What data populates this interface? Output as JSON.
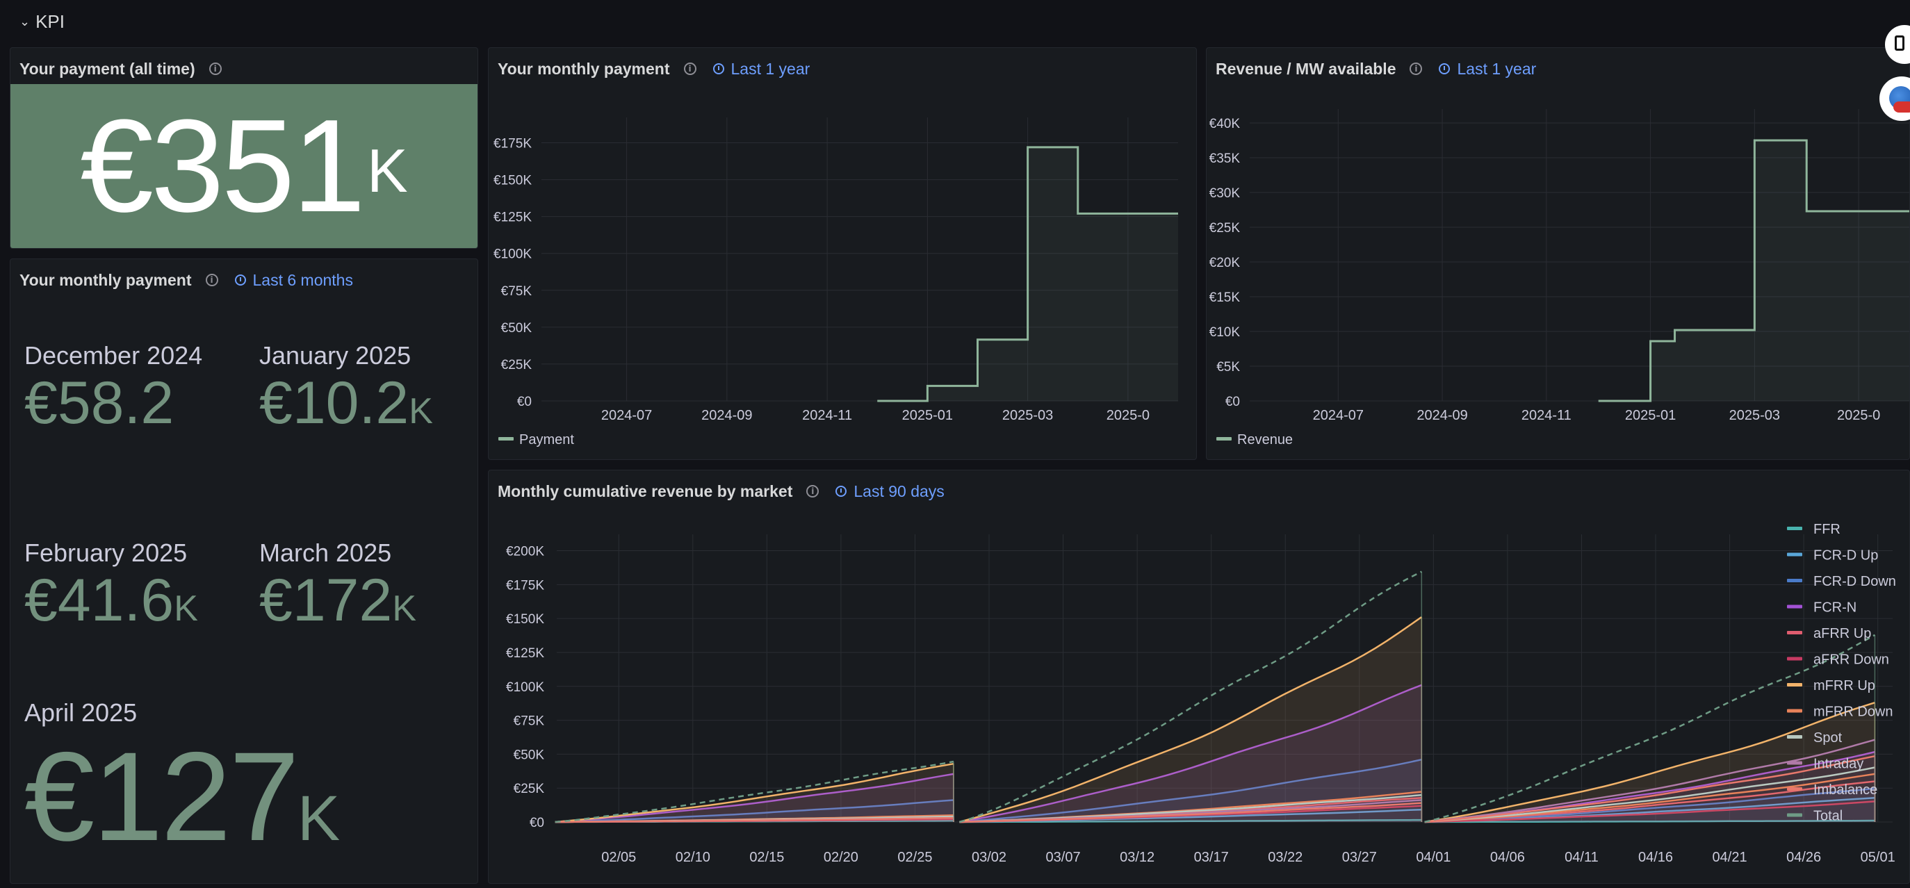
{
  "row": {
    "title": "KPI"
  },
  "icons": {
    "collapse": "chevron-down-icon",
    "info": "info-icon",
    "time": "clock-icon"
  },
  "colors": {
    "accent": "#6e9fff",
    "stat_green": "#73917e",
    "stat_bg": "#5f8069"
  },
  "panels": {
    "alltime": {
      "title": "Your payment (all time)",
      "value": "€351",
      "unit": "K"
    },
    "monthly_stats": {
      "title": "Your monthly payment",
      "time_range": "Last 6 months",
      "items": [
        {
          "label": "December 2024",
          "value": "€58.2",
          "unit": ""
        },
        {
          "label": "January 2025",
          "value": "€10.2",
          "unit": "K"
        },
        {
          "label": "February 2025",
          "value": "€41.6",
          "unit": "K"
        },
        {
          "label": "March 2025",
          "value": "€172",
          "unit": "K"
        },
        {
          "label": "April 2025",
          "value": "€127",
          "unit": "K"
        }
      ]
    },
    "monthly_chart": {
      "title": "Your monthly payment",
      "time_range": "Last 1 year"
    },
    "revenue_chart": {
      "title": "Revenue / MW available",
      "time_range": "Last 1 year"
    },
    "cumulative_chart": {
      "title": "Monthly cumulative revenue by market",
      "time_range": "Last 90 days"
    }
  },
  "chart_data": [
    {
      "type": "line",
      "step": true,
      "x_ticks": [
        "2024-07",
        "2024-09",
        "2024-11",
        "2025-01",
        "2025-03",
        "2025-0"
      ],
      "y_ticks": [
        "€0",
        "€25K",
        "€50K",
        "€75K",
        "€100K",
        "€125K",
        "€150K",
        "€175K"
      ],
      "ylim": [
        0,
        187500
      ],
      "series": [
        {
          "name": "Payment",
          "color": "#8fb59b",
          "x": [
            "2024-12",
            "2025-01",
            "2025-02",
            "2025-03",
            "2025-04",
            "2025-05"
          ],
          "values": [
            0,
            10200,
            41600,
            172000,
            127000,
            127000
          ]
        }
      ],
      "legend": "bottom-left",
      "grid": true
    },
    {
      "type": "line",
      "step": true,
      "x_ticks": [
        "2024-07",
        "2024-09",
        "2024-11",
        "2025-01",
        "2025-03",
        "2025-0"
      ],
      "y_ticks": [
        "€0",
        "€5K",
        "€10K",
        "€15K",
        "€20K",
        "€25K",
        "€30K",
        "€35K",
        "€40K"
      ],
      "ylim": [
        0,
        41000
      ],
      "series": [
        {
          "name": "Revenue",
          "color": "#8fb59b",
          "x": [
            "2024-12",
            "2025-01",
            "2025-01-15",
            "2025-02",
            "2025-03",
            "2025-04",
            "2025-05"
          ],
          "values": [
            0,
            8600,
            10200,
            10200,
            37500,
            27300,
            27300
          ]
        }
      ],
      "legend": "bottom-left",
      "grid": true
    },
    {
      "type": "area",
      "x_ticks": [
        "02/05",
        "02/10",
        "02/15",
        "02/20",
        "02/25",
        "03/02",
        "03/07",
        "03/12",
        "03/17",
        "03/22",
        "03/27",
        "04/01",
        "04/06",
        "04/11",
        "04/16",
        "04/21",
        "04/26",
        "05/01"
      ],
      "y_ticks": [
        "€0",
        "€25K",
        "€50K",
        "€75K",
        "€100K",
        "€125K",
        "€150K",
        "€175K",
        "€200K"
      ],
      "ylim": [
        0,
        210000
      ],
      "legend": "right",
      "grid": true,
      "series": [
        {
          "name": "FFR",
          "color": "#49b3ae",
          "end_values": [
            1000,
            1500,
            1000
          ]
        },
        {
          "name": "FCR-D Up",
          "color": "#5aa7d9",
          "end_values": [
            4000,
            9000,
            18000
          ]
        },
        {
          "name": "FCR-D Down",
          "color": "#4a7bc9",
          "end_values": [
            16000,
            46000,
            25000
          ]
        },
        {
          "name": "FCR-N",
          "color": "#a352d6",
          "end_values": [
            35000,
            100000,
            52000
          ]
        },
        {
          "name": "aFRR Up",
          "color": "#e05d6f",
          "end_values": [
            3000,
            18000,
            30000
          ]
        },
        {
          "name": "aFRR Down",
          "color": "#c73a63",
          "end_values": [
            2000,
            12000,
            15000
          ]
        },
        {
          "name": "mFRR Up",
          "color": "#f2b36a",
          "end_values": [
            43000,
            150000,
            88000
          ]
        },
        {
          "name": "mFRR Down",
          "color": "#e8825a",
          "end_values": [
            5000,
            22000,
            35000
          ]
        },
        {
          "name": "Spot",
          "color": "#b9c9c0",
          "end_values": [
            4000,
            20000,
            40000
          ]
        },
        {
          "name": "Intraday",
          "color": "#b07aa8",
          "end_values": [
            3000,
            16000,
            60000
          ]
        },
        {
          "name": "Imbalance",
          "color": "#e8786c",
          "end_values": [
            3000,
            14000,
            48000
          ]
        },
        {
          "name": "Total",
          "color": "#6f9c86",
          "end_values": [
            45000,
            185000,
            137000
          ]
        }
      ]
    }
  ]
}
